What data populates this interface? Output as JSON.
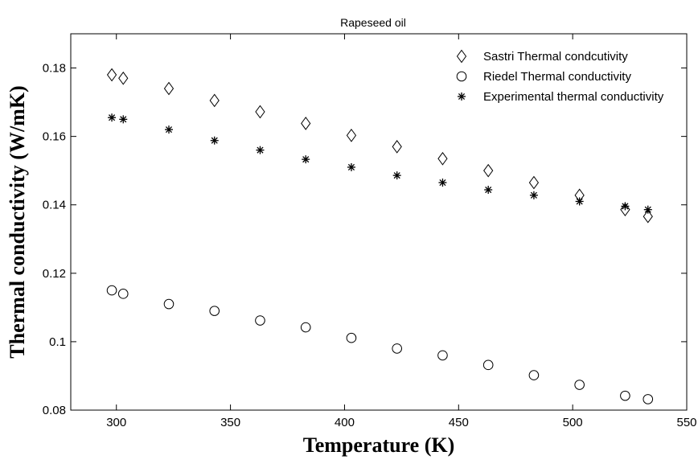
{
  "chart_data": {
    "type": "scatter",
    "title": "Rapeseed oil",
    "xlabel": "Temperature (K)",
    "ylabel": "Thermal conductivity (W/mK)",
    "xlim": [
      280,
      550
    ],
    "ylim": [
      0.08,
      0.19
    ],
    "xticks": [
      {
        "value": 300,
        "label": "300"
      },
      {
        "value": 350,
        "label": "350"
      },
      {
        "value": 400,
        "label": "400"
      },
      {
        "value": 450,
        "label": "450"
      },
      {
        "value": 500,
        "label": "500"
      },
      {
        "value": 550,
        "label": "550"
      }
    ],
    "yticks": [
      {
        "value": 0.08,
        "label": "0.08"
      },
      {
        "value": 0.1,
        "label": "0.1"
      },
      {
        "value": 0.12,
        "label": "0.12"
      },
      {
        "value": 0.14,
        "label": "0.14"
      },
      {
        "value": 0.16,
        "label": "0.16"
      },
      {
        "value": 0.18,
        "label": "0.18"
      }
    ],
    "grid": false,
    "legend_position": "top-right",
    "series": [
      {
        "name": "Sastri Thermal condcutivity",
        "marker": "diamond",
        "color": "#000000",
        "x": [
          298,
          303,
          323,
          343,
          363,
          383,
          403,
          423,
          443,
          463,
          483,
          503,
          523,
          533
        ],
        "y": [
          0.178,
          0.177,
          0.174,
          0.1705,
          0.1672,
          0.1638,
          0.1603,
          0.157,
          0.1535,
          0.15,
          0.1465,
          0.1428,
          0.1386,
          0.1366
        ]
      },
      {
        "name": "Riedel Thermal conductivity",
        "marker": "circle",
        "color": "#000000",
        "x": [
          298,
          303,
          323,
          343,
          363,
          383,
          403,
          423,
          443,
          463,
          483,
          503,
          523,
          533
        ],
        "y": [
          0.115,
          0.114,
          0.111,
          0.109,
          0.1062,
          0.1042,
          0.1011,
          0.098,
          0.096,
          0.0932,
          0.0902,
          0.0874,
          0.0842,
          0.0832
        ]
      },
      {
        "name": "Experimental thermal conductivity",
        "marker": "star",
        "color": "#000000",
        "x": [
          298,
          303,
          323,
          343,
          363,
          383,
          403,
          423,
          443,
          463,
          483,
          503,
          523,
          533
        ],
        "y": [
          0.1655,
          0.165,
          0.162,
          0.1588,
          0.156,
          0.1533,
          0.151,
          0.1486,
          0.1465,
          0.1444,
          0.1428,
          0.141,
          0.1396,
          0.1386
        ]
      }
    ]
  }
}
